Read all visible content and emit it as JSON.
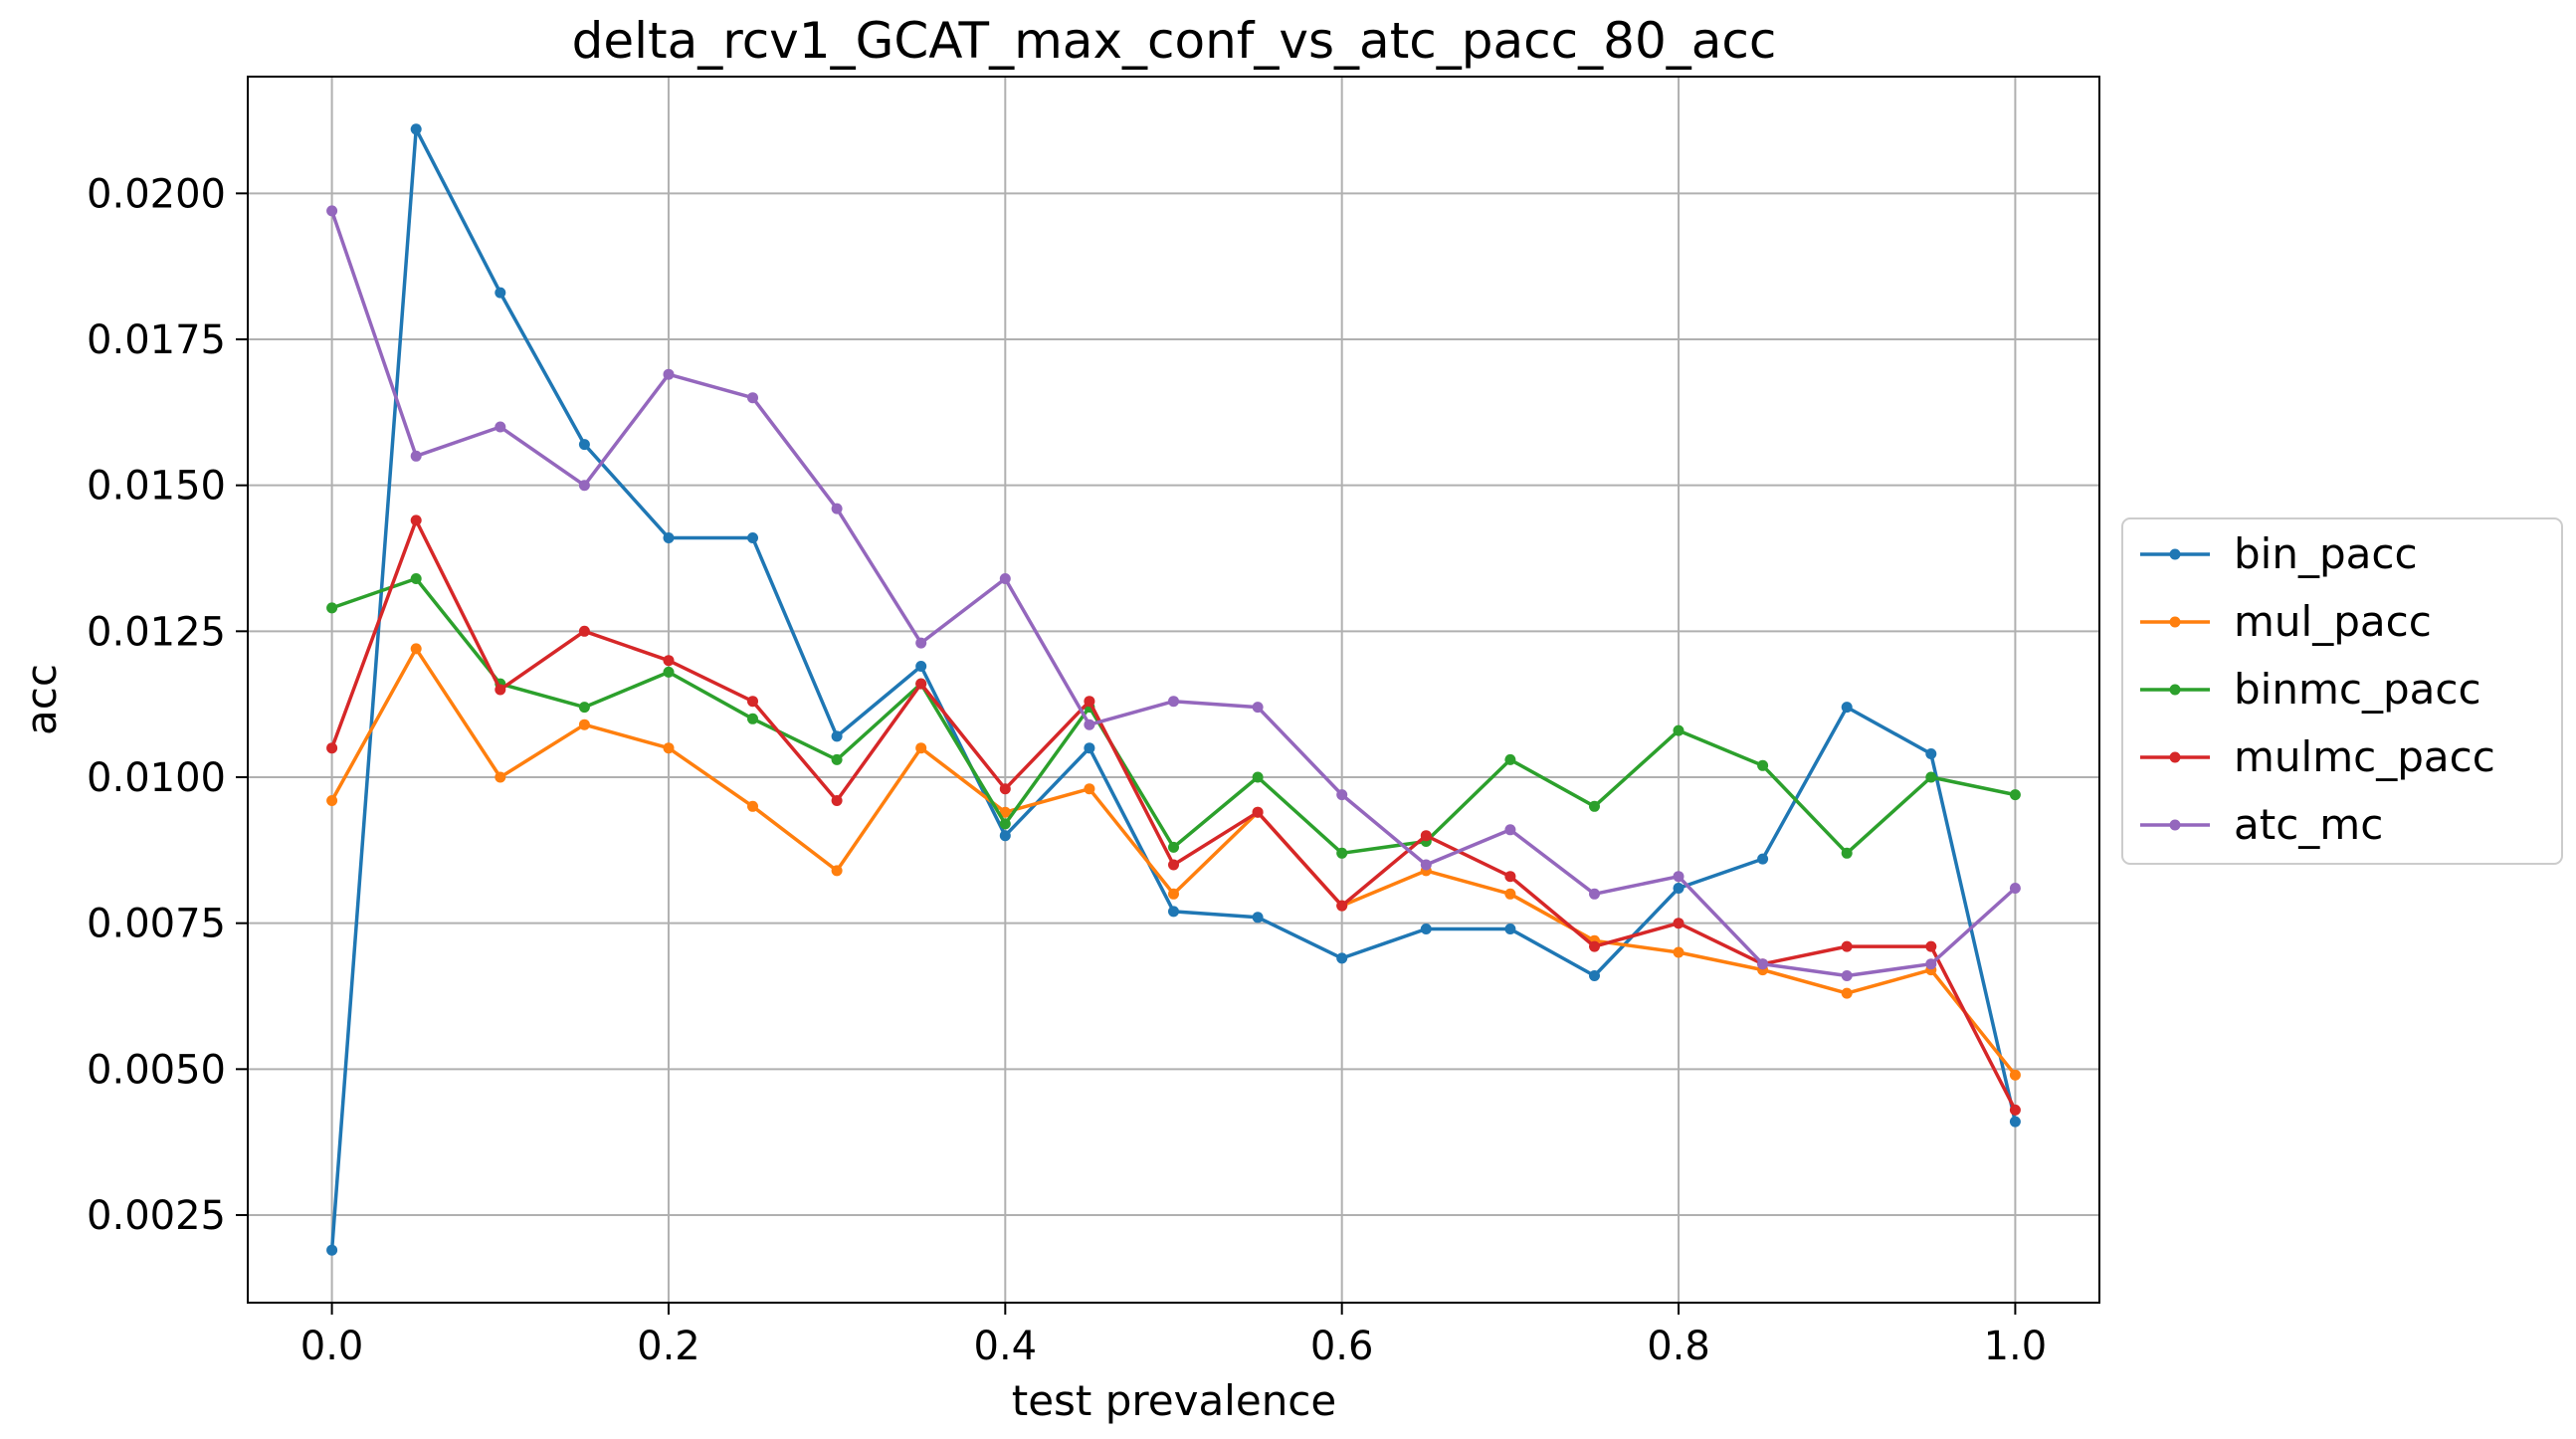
{
  "chart_data": {
    "type": "line",
    "title": "delta_rcv1_GCAT_max_conf_vs_atc_pacc_80_acc",
    "xlabel": "test prevalence",
    "ylabel": "acc",
    "xlim": [
      -0.05,
      1.05
    ],
    "ylim": [
      0.001,
      0.022
    ],
    "xticks": [
      0.0,
      0.2,
      0.4,
      0.6,
      0.8,
      1.0
    ],
    "xtick_labels": [
      "0.0",
      "0.2",
      "0.4",
      "0.6",
      "0.8",
      "1.0"
    ],
    "yticks": [
      0.0025,
      0.005,
      0.0075,
      0.01,
      0.0125,
      0.015,
      0.0175,
      0.02
    ],
    "ytick_labels": [
      "0.0025",
      "0.0050",
      "0.0075",
      "0.0100",
      "0.0125",
      "0.0150",
      "0.0175",
      "0.0200"
    ],
    "grid": true,
    "legend_position": "center-right-outside",
    "x": [
      0.0,
      0.05,
      0.1,
      0.15,
      0.2,
      0.25,
      0.3,
      0.35,
      0.4,
      0.45,
      0.5,
      0.55,
      0.6,
      0.65,
      0.7,
      0.75,
      0.8,
      0.85,
      0.9,
      0.95,
      1.0
    ],
    "series": [
      {
        "name": "bin_pacc",
        "color": "#1f77b4",
        "values": [
          0.0019,
          0.0211,
          0.0183,
          0.0157,
          0.0141,
          0.0141,
          0.0107,
          0.0119,
          0.009,
          0.0105,
          0.0077,
          0.0076,
          0.0069,
          0.0074,
          0.0074,
          0.0066,
          0.0081,
          0.0086,
          0.0112,
          0.0104,
          0.0041
        ]
      },
      {
        "name": "mul_pacc",
        "color": "#ff7f0e",
        "values": [
          0.0096,
          0.0122,
          0.01,
          0.0109,
          0.0105,
          0.0095,
          0.0084,
          0.0105,
          0.0094,
          0.0098,
          0.008,
          0.0094,
          0.0078,
          0.0084,
          0.008,
          0.0072,
          0.007,
          0.0067,
          0.0063,
          0.0067,
          0.0049
        ]
      },
      {
        "name": "binmc_pacc",
        "color": "#2ca02c",
        "values": [
          0.0129,
          0.0134,
          0.0116,
          0.0112,
          0.0118,
          0.011,
          0.0103,
          0.0116,
          0.0092,
          0.0112,
          0.0088,
          0.01,
          0.0087,
          0.0089,
          0.0103,
          0.0095,
          0.0108,
          0.0102,
          0.0087,
          0.01,
          0.0097
        ]
      },
      {
        "name": "mulmc_pacc",
        "color": "#d62728",
        "values": [
          0.0105,
          0.0144,
          0.0115,
          0.0125,
          0.012,
          0.0113,
          0.0096,
          0.0116,
          0.0098,
          0.0113,
          0.0085,
          0.0094,
          0.0078,
          0.009,
          0.0083,
          0.0071,
          0.0075,
          0.0068,
          0.0071,
          0.0071,
          0.0043
        ]
      },
      {
        "name": "atc_mc",
        "color": "#9467bd",
        "values": [
          0.0197,
          0.0155,
          0.016,
          0.015,
          0.0169,
          0.0165,
          0.0146,
          0.0123,
          0.0134,
          0.0109,
          0.0113,
          0.0112,
          0.0097,
          0.0085,
          0.0091,
          0.008,
          0.0083,
          0.0068,
          0.0066,
          0.0068,
          0.0081
        ]
      }
    ]
  }
}
